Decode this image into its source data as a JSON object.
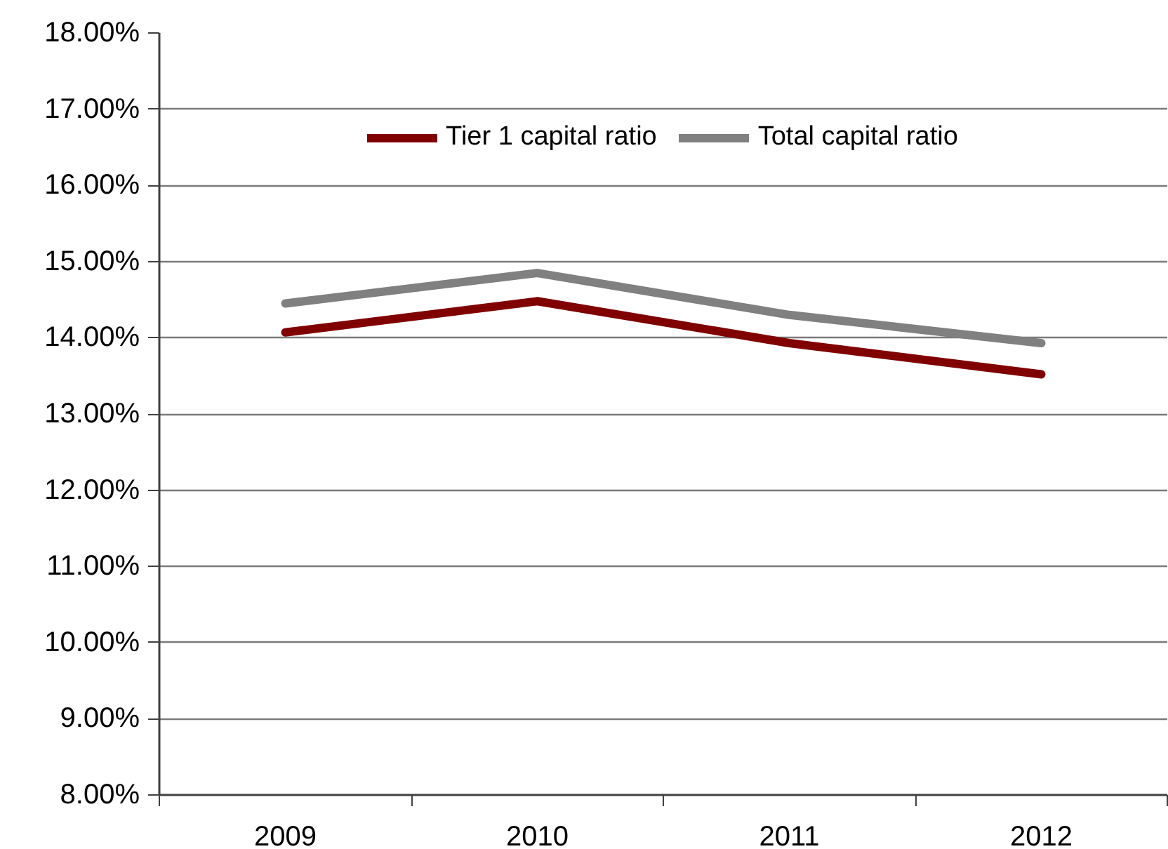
{
  "chart_data": {
    "type": "line",
    "categories": [
      "2009",
      "2010",
      "2011",
      "2012"
    ],
    "series": [
      {
        "name": "Tier 1 capital ratio",
        "color": "#800000",
        "values": [
          14.07,
          14.48,
          13.93,
          13.52
        ]
      },
      {
        "name": "Total capital ratio",
        "color": "#808080",
        "values": [
          14.45,
          14.85,
          14.3,
          13.93
        ]
      }
    ],
    "ylim": [
      8,
      18
    ],
    "yticks": [
      {
        "value": 8,
        "label": "8.00%"
      },
      {
        "value": 9,
        "label": "9.00%"
      },
      {
        "value": 10,
        "label": "10.00%"
      },
      {
        "value": 11,
        "label": "11.00%"
      },
      {
        "value": 12,
        "label": "12.00%"
      },
      {
        "value": 13,
        "label": "13.00%"
      },
      {
        "value": 14,
        "label": "14.00%"
      },
      {
        "value": 15,
        "label": "15.00%"
      },
      {
        "value": 16,
        "label": "16.00%"
      },
      {
        "value": 17,
        "label": "17.00%"
      },
      {
        "value": 18,
        "label": "18.00%"
      }
    ],
    "grid": "y",
    "legend": "top",
    "line_style": "solid"
  }
}
